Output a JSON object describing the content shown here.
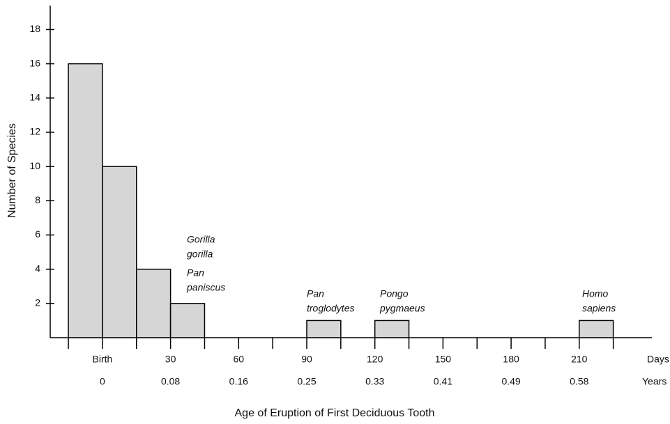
{
  "chart_data": {
    "type": "histogram",
    "bins": [
      -15,
      0,
      15,
      30,
      45,
      60,
      75,
      90,
      105,
      120,
      135,
      150,
      165,
      180,
      195,
      210,
      225
    ],
    "counts": [
      16,
      10,
      4,
      2,
      0,
      0,
      0,
      1,
      0,
      1,
      0,
      0,
      0,
      0,
      0,
      1
    ],
    "color": "#d6d6d6",
    "xlabel": "Age of Eruption of First Deciduous Tooth",
    "ylabel": "Number of Species",
    "xlim": [
      -23,
      242
    ],
    "ylim": [
      0,
      19.4
    ],
    "xticks": [
      {
        "value": 0,
        "label": "Birth"
      },
      30,
      60,
      90,
      120,
      150,
      180,
      210
    ],
    "xticks_minor": [
      -15,
      15,
      45,
      75,
      105,
      135,
      165,
      195,
      225
    ],
    "x_unit": "Days",
    "year_labels": [
      0,
      0.08,
      0.16,
      0.25,
      0.33,
      0.41,
      0.49,
      0.58
    ],
    "year_unit": "Years",
    "yticks": [
      2,
      4,
      6,
      8,
      10,
      12,
      14,
      16,
      18
    ],
    "annotations": [
      {
        "lines": [
          "Gorilla",
          "gorilla"
        ]
      },
      {
        "lines": [
          "Pan",
          "paniscus"
        ]
      },
      {
        "lines": [
          "Pan",
          "troglodytes"
        ]
      },
      {
        "lines": [
          "Pongo",
          "pygmaeus"
        ]
      },
      {
        "lines": [
          "Homo",
          "sapiens"
        ]
      }
    ]
  }
}
